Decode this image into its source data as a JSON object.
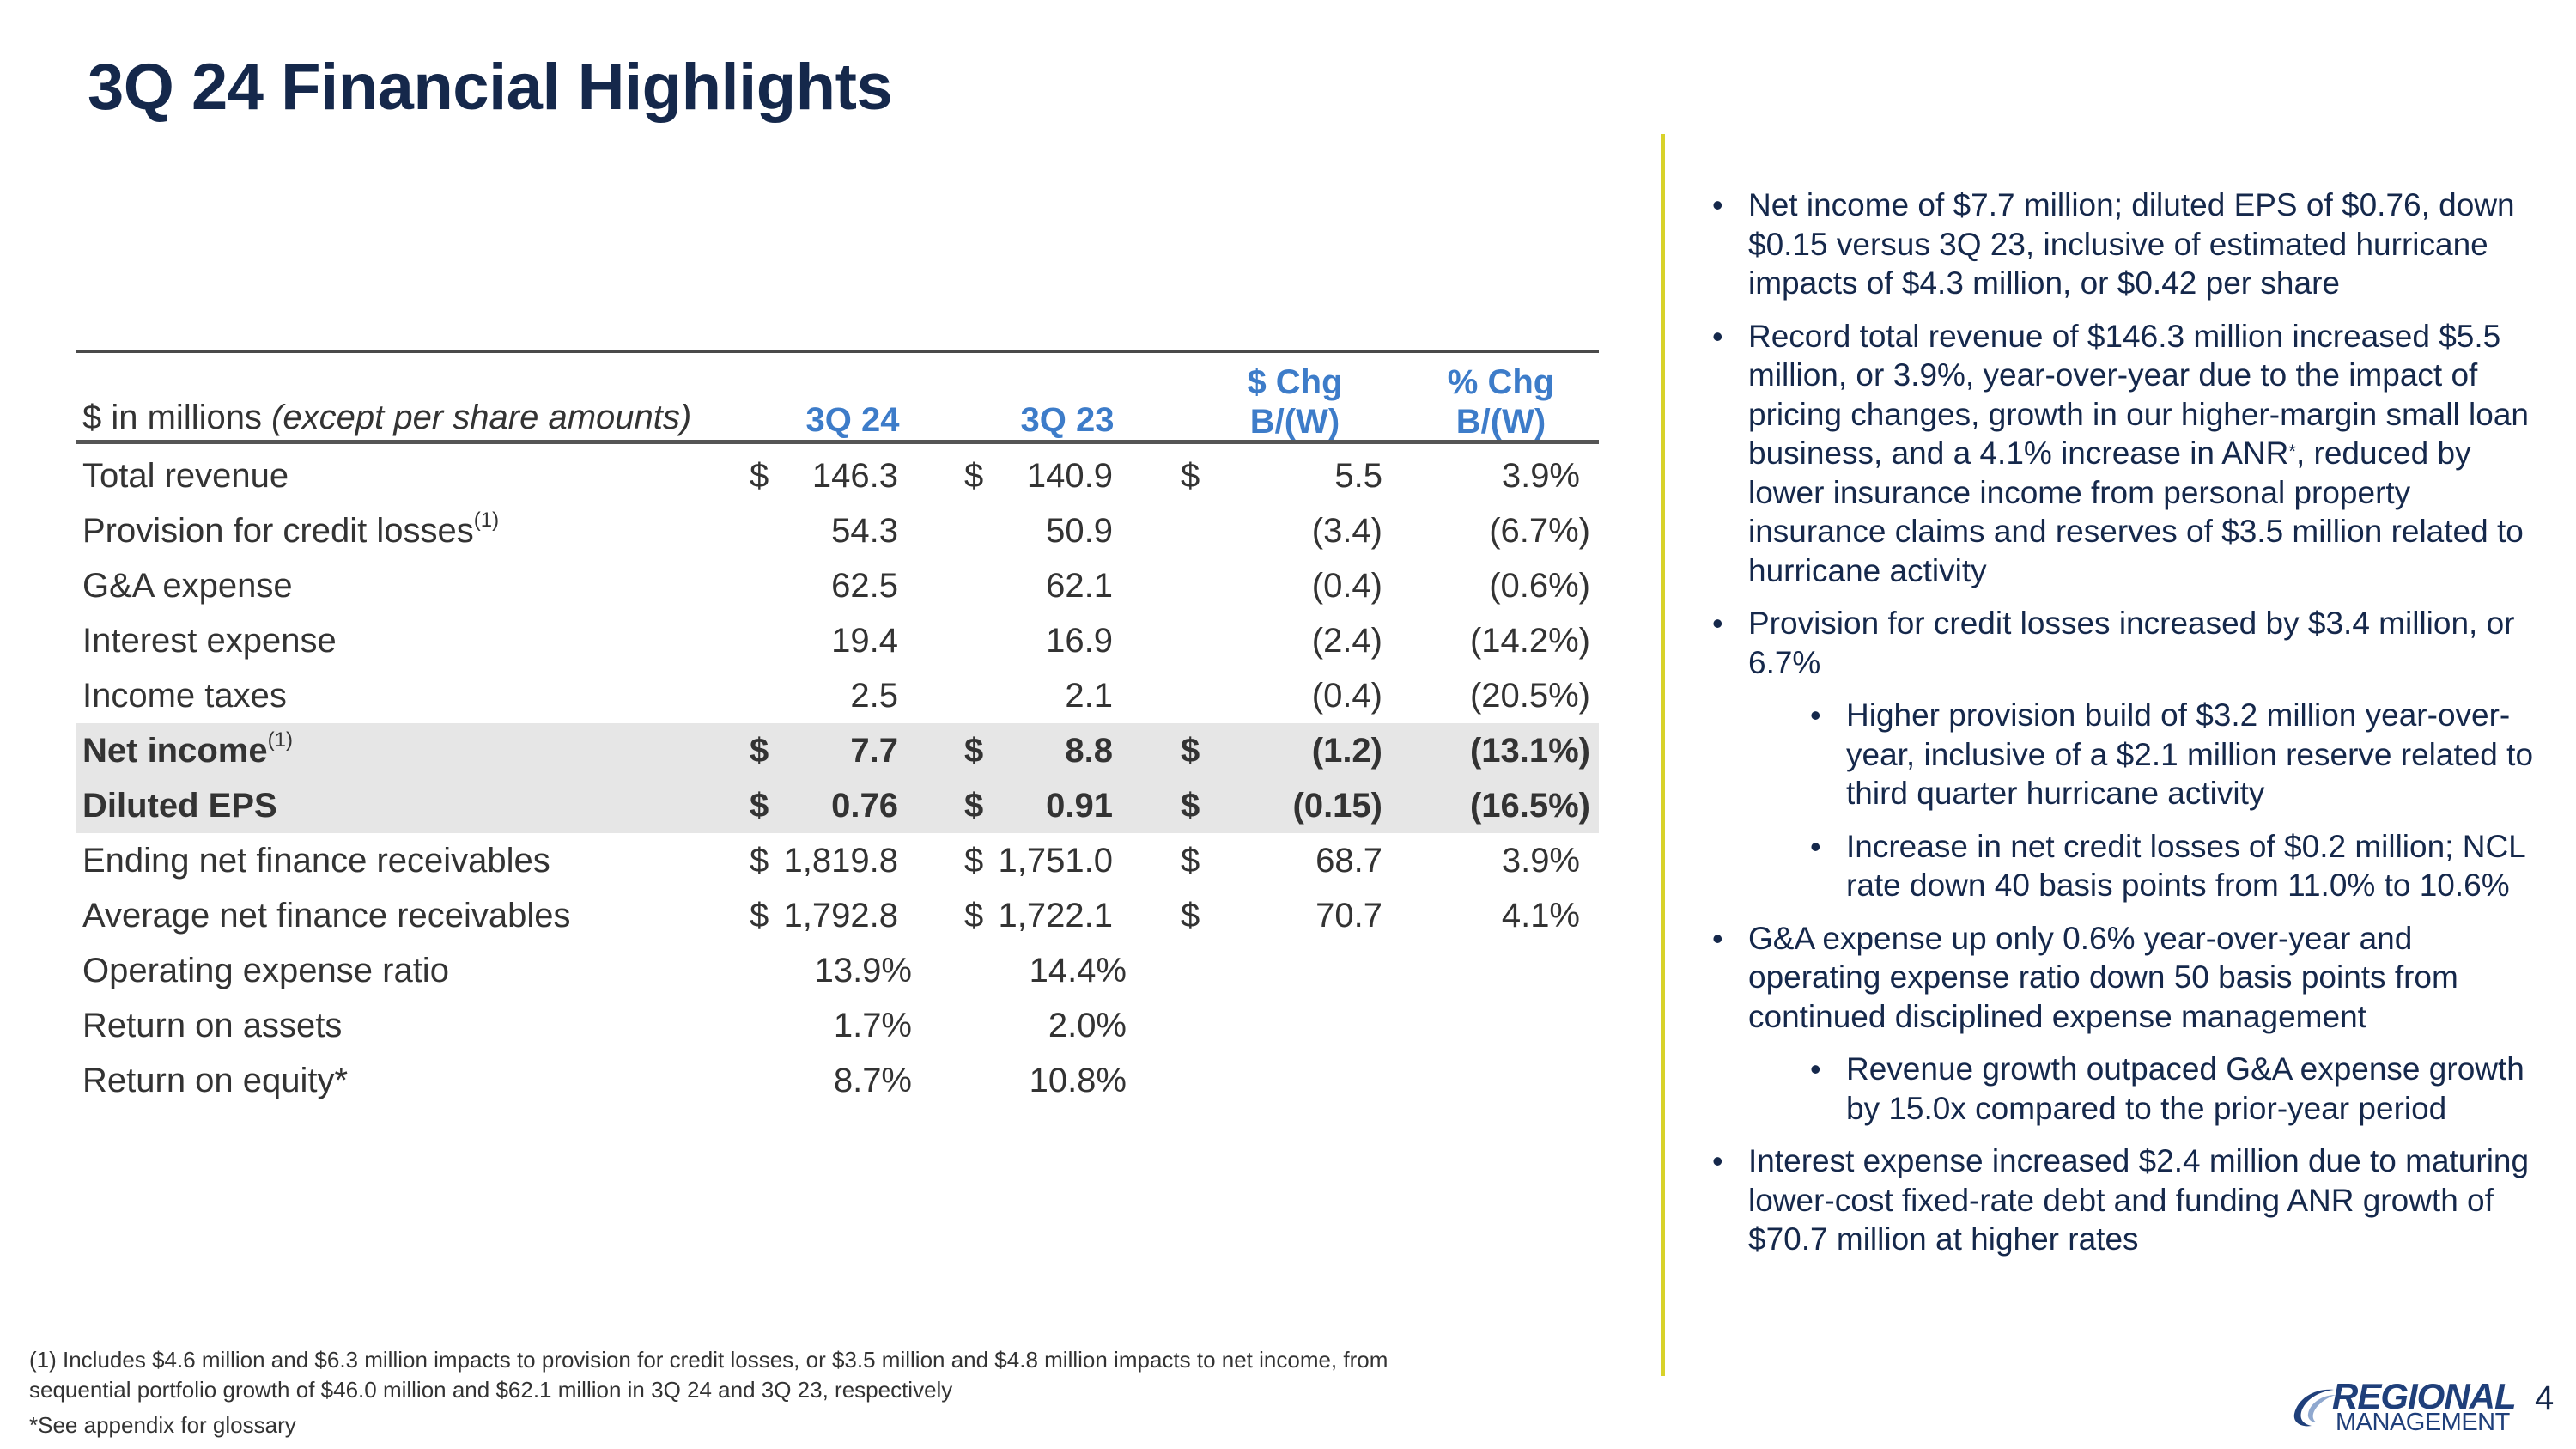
{
  "title": "3Q 24 Financial Highlights",
  "table": {
    "label_prefix": "$ in millions ",
    "label_italic": "(except per share amounts)",
    "col1": "3Q 24",
    "col2": "3Q 23",
    "col3_line1": "$ Chg",
    "col3_line2": "B/(W)",
    "col4_line1": "% Chg",
    "col4_line2": "B/(W)",
    "rows": [
      {
        "label": "Total revenue",
        "d1": "$",
        "v1": "146.3",
        "d2": "$",
        "v2": "140.9",
        "d3": "$",
        "v3": "5.5",
        "v4": "3.9%"
      },
      {
        "label": "Provision for credit losses",
        "sup": "(1)",
        "v1": "54.3",
        "v2": "50.9",
        "v3": "(3.4)",
        "v4": "(6.7%)"
      },
      {
        "label": "G&A expense",
        "v1": "62.5",
        "v2": "62.1",
        "v3": "(0.4)",
        "v4": "(0.6%)"
      },
      {
        "label": "Interest expense",
        "v1": "19.4",
        "v2": "16.9",
        "v3": "(2.4)",
        "v4": "(14.2%)"
      },
      {
        "label": "Income taxes",
        "v1": "2.5",
        "v2": "2.1",
        "v3": "(0.4)",
        "v4": "(20.5%)"
      },
      {
        "label": "Net income",
        "sup": "(1)",
        "d1": "$",
        "v1": "7.7",
        "d2": "$",
        "v2": "8.8",
        "d3": "$",
        "v3": "(1.2)",
        "v4": "(13.1%)"
      },
      {
        "label": "Diluted EPS",
        "d1": "$",
        "v1": "0.76",
        "d2": "$",
        "v2": "0.91",
        "d3": "$",
        "v3": "(0.15)",
        "v4": "(16.5%)"
      },
      {
        "label": "Ending net finance receivables",
        "d1": "$",
        "v1": "1,819.8",
        "d2": "$",
        "v2": "1,751.0",
        "d3": "$",
        "v3": "68.7",
        "v4": "3.9%"
      },
      {
        "label": "Average net finance receivables",
        "d1": "$",
        "v1": "1,792.8",
        "d2": "$",
        "v2": "1,722.1",
        "d3": "$",
        "v3": "70.7",
        "v4": "4.1%"
      },
      {
        "label": "Operating expense ratio",
        "v1": "13.9%",
        "v2": "14.4%"
      },
      {
        "label": "Return on assets",
        "v1": "1.7%",
        "v2": "2.0%"
      },
      {
        "label": "Return on equity*",
        "v1": "8.7%",
        "v2": "10.8%"
      }
    ]
  },
  "bullets": [
    "Net income of $7.7 million; diluted EPS of $0.76, down $0.15 versus 3Q 23, inclusive of estimated hurricane impacts of $4.3 million, or $0.42 per share",
    "Record total revenue of $146.3 million increased $5.5 million, or 3.9%, year-over-year due to the impact of pricing changes, growth in our higher-margin small loan business, and a 4.1% increase in ANR",
    "*",
    ", reduced by lower insurance income from personal property insurance claims and reserves of $3.5 million related to hurricane activity",
    "Provision for credit losses increased by $3.4 million, or 6.7%",
    "Higher provision build of $3.2 million year-over-year, inclusive of a $2.1 million reserve related to third quarter hurricane activity",
    "Increase in net credit losses of $0.2 million; NCL rate down 40 basis points from 11.0% to 10.6%",
    "G&A expense up only 0.6% year-over-year and operating expense ratio down 50 basis points from continued disciplined expense management",
    "Revenue growth outpaced G&A expense growth by 15.0x compared to the prior-year period",
    "Interest expense increased $2.4 million due to maturing lower-cost fixed-rate debt and funding ANR growth of $70.7 million at higher rates"
  ],
  "footnote1": "(1) Includes $4.6 million and $6.3 million impacts to provision for credit losses, or $3.5 million and $4.8 million impacts to net income, from",
  "footnote2": "sequential portfolio growth of $46.0 million and $62.1 million in 3Q 24 and 3Q 23, respectively",
  "footnote3": "*See appendix for glossary",
  "logo_line1": "REGIONAL",
  "logo_line2": "MANAGEMENT",
  "page_number": "4",
  "colors": {
    "title": "#15284b",
    "header_blue": "#3d7cc9",
    "divider": "#d8d22a",
    "highlight": "#e6e6e6"
  }
}
